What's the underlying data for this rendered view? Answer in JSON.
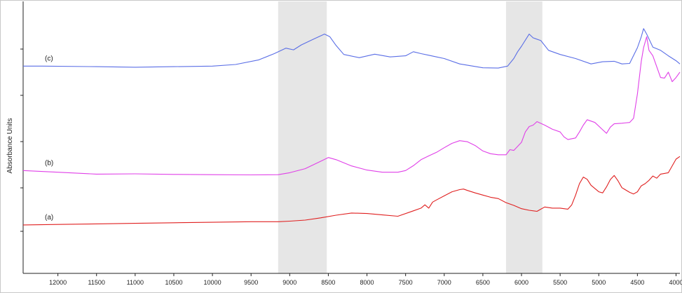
{
  "chart_data": {
    "type": "line",
    "ylabel": "Absorbance Units",
    "xlabel": "",
    "xlim": [
      12450,
      3950
    ],
    "x_reversed": true,
    "ylim": [
      0,
      1.0
    ],
    "y_ticks_labeled": false,
    "grid": false,
    "x_ticks": [
      12000,
      11500,
      11000,
      10500,
      10000,
      9500,
      9000,
      8500,
      8000,
      7500,
      7000,
      6500,
      6000,
      5500,
      5000,
      4500,
      4000
    ],
    "x_tick_labels": [
      "12000",
      "11500",
      "11000",
      "10500",
      "10000",
      "9500",
      "9000",
      "8500",
      "8000",
      "7500",
      "7000",
      "6500",
      "6000",
      "5500",
      "5000",
      "4500",
      "4000"
    ],
    "shaded_regions": [
      {
        "x_start": 9150,
        "x_end": 8520,
        "color": "#e6e6e6"
      },
      {
        "x_start": 6200,
        "x_end": 5730,
        "color": "#e6e6e6"
      }
    ],
    "series": [
      {
        "name": "(c)",
        "color": "#5a6ee6",
        "x": [
          12450,
          12200,
          11500,
          11000,
          10500,
          10000,
          9700,
          9400,
          9200,
          9050,
          8950,
          8850,
          8700,
          8550,
          8480,
          8400,
          8300,
          8100,
          7900,
          7700,
          7500,
          7400,
          7300,
          7200,
          7100,
          7000,
          6800,
          6500,
          6300,
          6180,
          6100,
          6050,
          6000,
          5900,
          5850,
          5750,
          5650,
          5500,
          5300,
          5100,
          4950,
          4800,
          4700,
          4600,
          4500,
          4450,
          4420,
          4380,
          4300,
          4200,
          4100,
          4000,
          3950
        ],
        "y": [
          0.762,
          0.762,
          0.76,
          0.758,
          0.76,
          0.762,
          0.768,
          0.785,
          0.808,
          0.828,
          0.822,
          0.84,
          0.86,
          0.88,
          0.87,
          0.838,
          0.805,
          0.793,
          0.806,
          0.796,
          0.8,
          0.815,
          0.808,
          0.802,
          0.796,
          0.79,
          0.77,
          0.756,
          0.755,
          0.762,
          0.79,
          0.815,
          0.835,
          0.88,
          0.866,
          0.856,
          0.82,
          0.805,
          0.79,
          0.77,
          0.778,
          0.78,
          0.77,
          0.772,
          0.83,
          0.87,
          0.9,
          0.88,
          0.832,
          0.82,
          0.8,
          0.782,
          0.77
        ]
      },
      {
        "name": "(b)",
        "color": "#e040e8",
        "x": [
          12450,
          12000,
          11500,
          11000,
          10500,
          10000,
          9500,
          9150,
          9000,
          8800,
          8600,
          8500,
          8400,
          8200,
          8000,
          7800,
          7600,
          7500,
          7400,
          7300,
          7200,
          7100,
          7000,
          6900,
          6800,
          6700,
          6600,
          6500,
          6400,
          6300,
          6200,
          6150,
          6100,
          6000,
          5950,
          5900,
          5850,
          5800,
          5700,
          5600,
          5500,
          5450,
          5400,
          5300,
          5250,
          5200,
          5150,
          5050,
          4950,
          4900,
          4850,
          4800,
          4700,
          4600,
          4550,
          4500,
          4450,
          4420,
          4380,
          4350,
          4300,
          4250,
          4200,
          4150,
          4100,
          4050,
          4000,
          3950
        ],
        "y": [
          0.378,
          0.372,
          0.365,
          0.366,
          0.364,
          0.363,
          0.362,
          0.363,
          0.37,
          0.385,
          0.412,
          0.426,
          0.418,
          0.395,
          0.38,
          0.372,
          0.372,
          0.378,
          0.396,
          0.418,
          0.432,
          0.445,
          0.462,
          0.478,
          0.488,
          0.484,
          0.47,
          0.45,
          0.44,
          0.436,
          0.436,
          0.455,
          0.452,
          0.482,
          0.52,
          0.54,
          0.545,
          0.558,
          0.545,
          0.53,
          0.52,
          0.502,
          0.492,
          0.498,
          0.52,
          0.545,
          0.565,
          0.555,
          0.528,
          0.515,
          0.538,
          0.55,
          0.552,
          0.555,
          0.57,
          0.66,
          0.78,
          0.83,
          0.87,
          0.82,
          0.8,
          0.76,
          0.72,
          0.718,
          0.74,
          0.705,
          0.72,
          0.74
        ]
      },
      {
        "name": "(a)",
        "color": "#e02020",
        "x": [
          12450,
          12000,
          11500,
          11000,
          10500,
          10000,
          9500,
          9150,
          9000,
          8800,
          8600,
          8400,
          8200,
          8000,
          7800,
          7600,
          7400,
          7300,
          7250,
          7200,
          7150,
          7100,
          7000,
          6900,
          6800,
          6750,
          6700,
          6600,
          6500,
          6400,
          6300,
          6200,
          6100,
          6000,
          5900,
          5800,
          5750,
          5700,
          5600,
          5500,
          5400,
          5350,
          5300,
          5250,
          5200,
          5150,
          5100,
          5000,
          4950,
          4900,
          4850,
          4800,
          4750,
          4700,
          4600,
          4550,
          4500,
          4450,
          4400,
          4350,
          4300,
          4250,
          4200,
          4100,
          4000,
          3950
        ],
        "y": [
          0.178,
          0.18,
          0.182,
          0.184,
          0.186,
          0.188,
          0.19,
          0.19,
          0.192,
          0.196,
          0.204,
          0.214,
          0.222,
          0.22,
          0.215,
          0.21,
          0.23,
          0.24,
          0.252,
          0.24,
          0.262,
          0.27,
          0.285,
          0.3,
          0.308,
          0.31,
          0.305,
          0.296,
          0.288,
          0.28,
          0.275,
          0.26,
          0.25,
          0.238,
          0.232,
          0.228,
          0.236,
          0.244,
          0.24,
          0.24,
          0.236,
          0.252,
          0.288,
          0.33,
          0.354,
          0.346,
          0.324,
          0.3,
          0.296,
          0.318,
          0.345,
          0.36,
          0.34,
          0.315,
          0.298,
          0.292,
          0.3,
          0.322,
          0.33,
          0.342,
          0.358,
          0.35,
          0.365,
          0.37,
          0.42,
          0.43
        ]
      }
    ]
  }
}
